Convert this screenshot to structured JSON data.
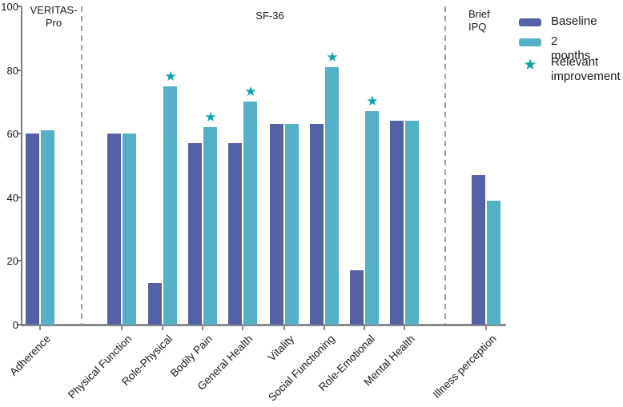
{
  "sections": [
    {
      "id": "veritas-pro",
      "label": "VERITAS-\nPro"
    },
    {
      "id": "sf-36",
      "label": "SF-36"
    },
    {
      "id": "brief-ipq",
      "label": "Brief\nIPQ"
    }
  ],
  "legend": {
    "baseline_label": "Baseline",
    "two_months_label": "2 months",
    "star_label": "Relevant\nimprovement",
    "star_glyph": "★"
  },
  "colors": {
    "baseline_bar": "#5561a6",
    "two_months_bar": "#53b0c6",
    "star": "#0ea4a4",
    "axis": "#8a8a8a",
    "separator": "#9e9e9e",
    "text": "#1a1a1a"
  },
  "chart_data": {
    "type": "bar",
    "categories": [
      "Adherence",
      "Physical Function",
      "Role-Physical",
      "Bodily Pain",
      "General Health",
      "Vitality",
      "Social Functioning",
      "Role-Emotional",
      "Mental Health",
      "Illness perception"
    ],
    "series": [
      {
        "name": "Baseline",
        "values": [
          60,
          60,
          13,
          57,
          57,
          63,
          63,
          17,
          64,
          47
        ]
      },
      {
        "name": "2 months",
        "values": [
          61,
          60,
          75,
          62,
          70,
          63,
          81,
          67,
          64,
          39
        ]
      }
    ],
    "relevant_improvement": [
      false,
      false,
      true,
      true,
      true,
      false,
      true,
      true,
      false,
      false
    ],
    "section_groups": [
      {
        "section": "VERITAS-Pro",
        "categories": [
          "Adherence"
        ]
      },
      {
        "section": "SF-36",
        "categories": [
          "Physical Function",
          "Role-Physical",
          "Bodily Pain",
          "General Health",
          "Vitality",
          "Social Functioning",
          "Role-Emotional",
          "Mental Health"
        ]
      },
      {
        "section": "Brief IPQ",
        "categories": [
          "Illness perception"
        ]
      }
    ],
    "ylim": [
      0,
      100
    ],
    "yticks": [
      0,
      20,
      40,
      60,
      80,
      100
    ],
    "xlabel": "",
    "ylabel": "",
    "title": "",
    "grid": false,
    "legend_position": "top-right"
  }
}
